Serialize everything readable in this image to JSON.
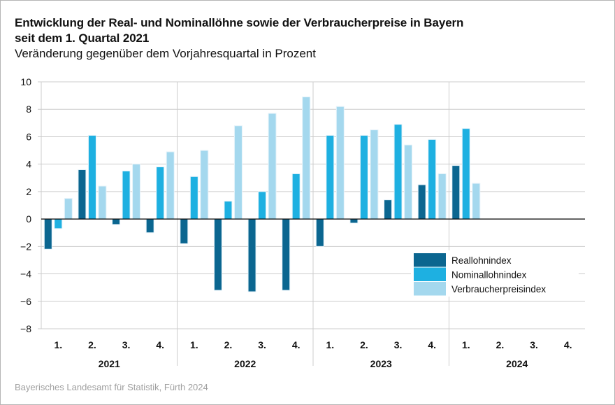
{
  "title_line1": "Entwicklung der Real- und Nominallöhne sowie der Verbraucherpreise in Bayern",
  "title_line2": "seit dem 1. Quartal 2021",
  "subtitle": "Veränderung gegenüber dem Vorjahresquartal in Prozent",
  "source": "Bayerisches Landesamt für Statistik, Fürth 2024",
  "colors": {
    "Reallohnindex": "#0b6690",
    "Nominallohnindex": "#1eb0e1",
    "Verbraucherpreisindex": "#a4d8ee",
    "grid": "#cccccc",
    "zero_line": "#000000"
  },
  "chart_data": {
    "type": "bar",
    "title": "Entwicklung der Real- und Nominallöhne sowie der Verbraucherpreise in Bayern seit dem 1. Quartal 2021",
    "subtitle": "Veränderung gegenüber dem Vorjahresquartal in Prozent",
    "xlabel": "",
    "ylabel": "",
    "ylim": [
      -8,
      10
    ],
    "yticks": [
      -8,
      -6,
      -4,
      -2,
      0,
      2,
      4,
      6,
      8,
      10
    ],
    "ytick_labels": [
      "−8",
      "−6",
      "−4",
      "−2",
      "0",
      "2",
      "4",
      "6",
      "8",
      "10"
    ],
    "grid": true,
    "legend_position": "bottom-right",
    "groups": [
      "2021",
      "2022",
      "2023",
      "2024"
    ],
    "categories": [
      "1.",
      "2.",
      "3.",
      "4.",
      "1.",
      "2.",
      "3.",
      "4.",
      "1.",
      "2.",
      "3.",
      "4.",
      "1.",
      "2.",
      "3.",
      "4."
    ],
    "series": [
      {
        "name": "Reallohnindex",
        "values": [
          -2.2,
          3.6,
          -0.4,
          -1.0,
          -1.8,
          -5.2,
          -5.3,
          -5.2,
          -2.0,
          -0.3,
          1.4,
          2.5,
          3.9,
          null,
          null,
          null
        ]
      },
      {
        "name": "Nominallohnindex",
        "values": [
          -0.7,
          6.1,
          3.5,
          3.8,
          3.1,
          1.3,
          2.0,
          3.3,
          6.1,
          6.1,
          6.9,
          5.8,
          6.6,
          null,
          null,
          null
        ]
      },
      {
        "name": "Verbraucherpreisindex",
        "values": [
          1.5,
          2.4,
          4.0,
          4.9,
          5.0,
          6.8,
          7.7,
          8.9,
          8.2,
          6.5,
          5.4,
          3.3,
          2.6,
          null,
          null,
          null
        ]
      }
    ]
  }
}
